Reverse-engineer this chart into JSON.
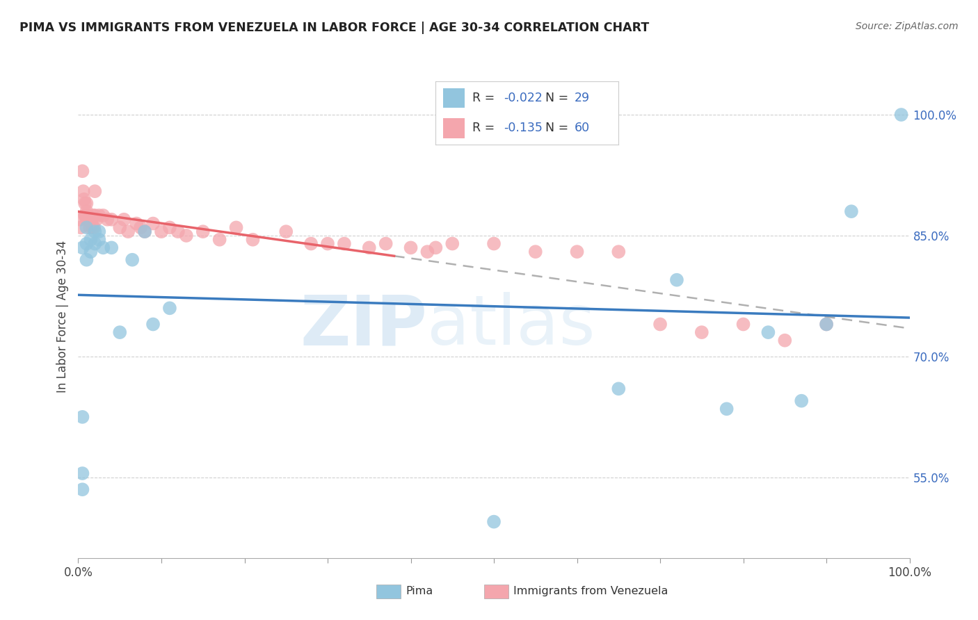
{
  "title": "PIMA VS IMMIGRANTS FROM VENEZUELA IN LABOR FORCE | AGE 30-34 CORRELATION CHART",
  "source": "Source: ZipAtlas.com",
  "ylabel": "In Labor Force | Age 30-34",
  "legend_pima_label": "Pima",
  "legend_venezuela_label": "Immigrants from Venezuela",
  "pima_R": -0.022,
  "pima_N": 29,
  "venezuela_R": -0.135,
  "venezuela_N": 60,
  "xlim": [
    0.0,
    1.0
  ],
  "ylim": [
    0.45,
    1.05
  ],
  "y_ticks_right": [
    0.55,
    0.7,
    0.85,
    1.0
  ],
  "y_tick_labels_right": [
    "55.0%",
    "70.0%",
    "85.0%",
    "100.0%"
  ],
  "pima_color": "#92c5de",
  "venezuela_color": "#f4a6ad",
  "pima_scatter_x": [
    0.005,
    0.005,
    0.005,
    0.005,
    0.01,
    0.01,
    0.01,
    0.015,
    0.015,
    0.02,
    0.02,
    0.025,
    0.025,
    0.03,
    0.04,
    0.05,
    0.065,
    0.08,
    0.09,
    0.11,
    0.5,
    0.65,
    0.72,
    0.78,
    0.83,
    0.87,
    0.9,
    0.93,
    0.99
  ],
  "pima_scatter_y": [
    0.535,
    0.555,
    0.625,
    0.835,
    0.82,
    0.84,
    0.86,
    0.83,
    0.845,
    0.84,
    0.855,
    0.845,
    0.855,
    0.835,
    0.835,
    0.73,
    0.82,
    0.855,
    0.74,
    0.76,
    0.495,
    0.66,
    0.795,
    0.635,
    0.73,
    0.645,
    0.74,
    0.88,
    1.0
  ],
  "venezuela_scatter_x": [
    0.002,
    0.003,
    0.005,
    0.006,
    0.007,
    0.008,
    0.008,
    0.009,
    0.01,
    0.01,
    0.01,
    0.012,
    0.013,
    0.014,
    0.015,
    0.016,
    0.017,
    0.018,
    0.019,
    0.02,
    0.02,
    0.022,
    0.025,
    0.03,
    0.035,
    0.04,
    0.05,
    0.055,
    0.06,
    0.07,
    0.075,
    0.08,
    0.09,
    0.1,
    0.11,
    0.12,
    0.13,
    0.15,
    0.17,
    0.19,
    0.21,
    0.25,
    0.28,
    0.3,
    0.32,
    0.35,
    0.37,
    0.4,
    0.42,
    0.43,
    0.45,
    0.5,
    0.55,
    0.6,
    0.65,
    0.7,
    0.75,
    0.8,
    0.85,
    0.9
  ],
  "venezuela_scatter_y": [
    0.87,
    0.86,
    0.93,
    0.905,
    0.895,
    0.89,
    0.875,
    0.875,
    0.87,
    0.88,
    0.89,
    0.875,
    0.87,
    0.86,
    0.87,
    0.865,
    0.86,
    0.875,
    0.86,
    0.905,
    0.875,
    0.87,
    0.875,
    0.875,
    0.87,
    0.87,
    0.86,
    0.87,
    0.855,
    0.865,
    0.86,
    0.855,
    0.865,
    0.855,
    0.86,
    0.855,
    0.85,
    0.855,
    0.845,
    0.86,
    0.845,
    0.855,
    0.84,
    0.84,
    0.84,
    0.835,
    0.84,
    0.835,
    0.83,
    0.835,
    0.84,
    0.84,
    0.83,
    0.83,
    0.83,
    0.74,
    0.73,
    0.74,
    0.72,
    0.74
  ],
  "pima_line_color": "#3a7bbf",
  "venezuela_line_color": "#e8636a",
  "trendline_dashed_color": "#b0b0b0",
  "background_color": "#ffffff",
  "grid_color": "#d0d0d0",
  "watermark_zip": "ZIP",
  "watermark_atlas": "atlas"
}
